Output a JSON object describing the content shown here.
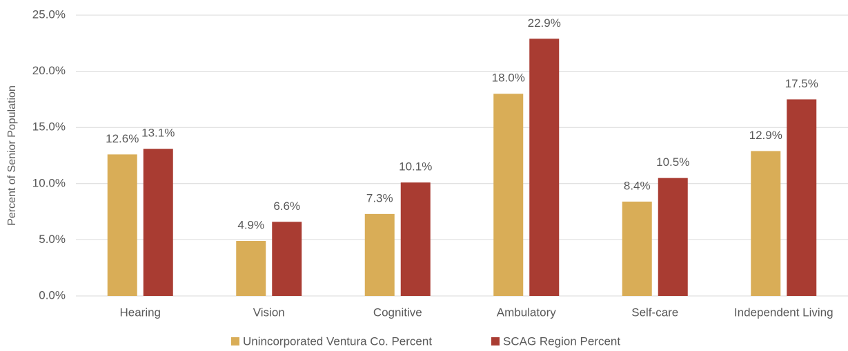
{
  "chart_data": {
    "type": "bar",
    "y_axis_label": "Percent of Senior Population",
    "categories": [
      "Hearing",
      "Vision",
      "Cognitive",
      "Ambulatory",
      "Self-care",
      "Independent Living"
    ],
    "series": [
      {
        "name": "Unincorporated Ventura Co. Percent",
        "color": "#d9ad57",
        "values": [
          12.6,
          4.9,
          7.3,
          18.0,
          8.4,
          12.9
        ],
        "value_labels": [
          "12.6%",
          "4.9%",
          "7.3%",
          "18.0%",
          "8.4%",
          "12.9%"
        ]
      },
      {
        "name": "SCAG Region Percent",
        "color": "#a93c32",
        "values": [
          13.1,
          6.6,
          10.1,
          22.9,
          10.5,
          17.5
        ],
        "value_labels": [
          "13.1%",
          "6.6%",
          "10.1%",
          "22.9%",
          "10.5%",
          "17.5%"
        ]
      }
    ],
    "ylim": [
      0,
      25
    ],
    "yticks": [
      {
        "value": 0,
        "label": "0.0%"
      },
      {
        "value": 5,
        "label": "5.0%"
      },
      {
        "value": 10,
        "label": "10.0%"
      },
      {
        "value": 15,
        "label": "15.0%"
      },
      {
        "value": 20,
        "label": "20.0%"
      },
      {
        "value": 25,
        "label": "25.0%"
      }
    ],
    "grid": true,
    "legend": "bottom"
  }
}
